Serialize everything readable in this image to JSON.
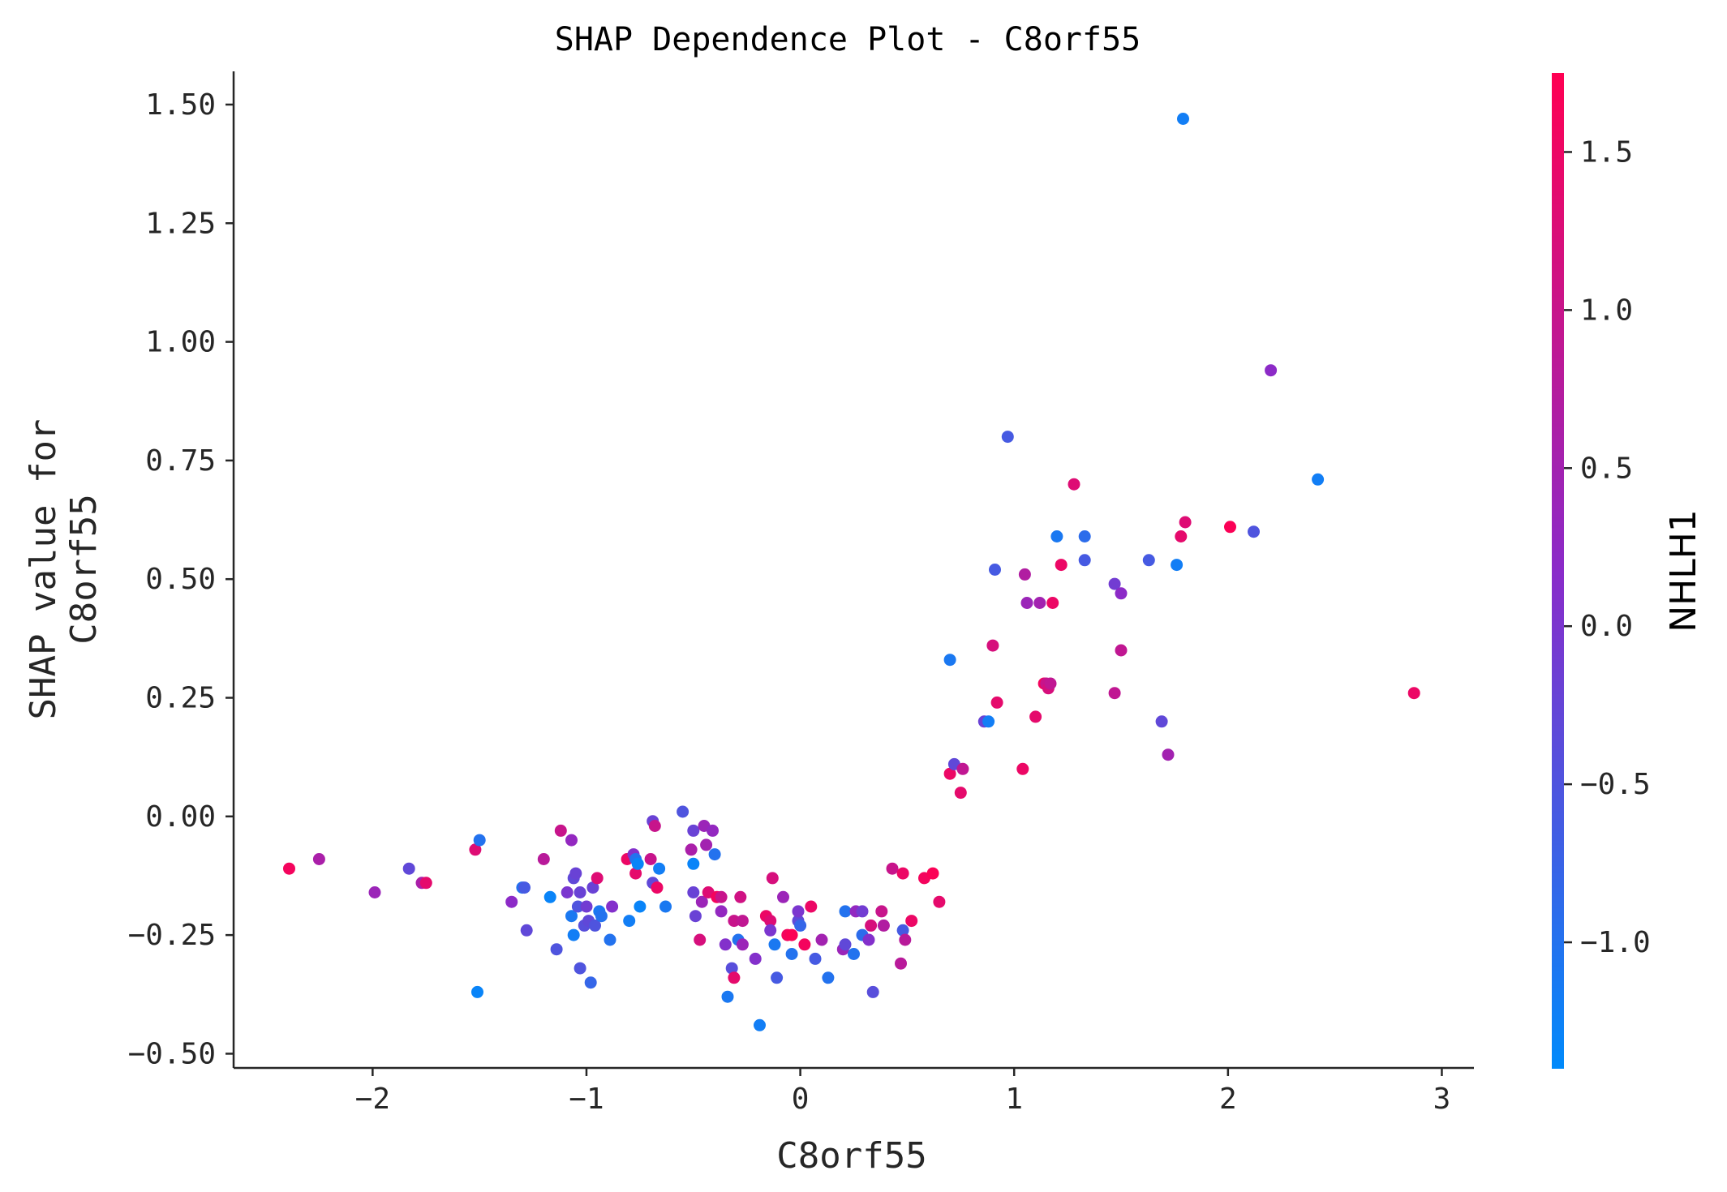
{
  "chart_data": {
    "type": "scatter",
    "title": "SHAP Dependence Plot - C8orf55",
    "xlabel": "C8orf55",
    "ylabel_lines": [
      "SHAP value for",
      "C8orf55"
    ],
    "xlim": [
      -2.65,
      3.15
    ],
    "ylim": [
      -0.53,
      1.57
    ],
    "x_ticks": [
      -2,
      -1,
      0,
      1,
      2,
      3
    ],
    "x_tick_labels": [
      "−2",
      "−1",
      "0",
      "1",
      "2",
      "3"
    ],
    "y_ticks": [
      -0.5,
      -0.25,
      0,
      0.25,
      0.5,
      0.75,
      1.0,
      1.25,
      1.5
    ],
    "y_tick_labels": [
      "−0.50",
      "−0.25",
      "0.00",
      "0.25",
      "0.50",
      "0.75",
      "1.00",
      "1.25",
      "1.50"
    ],
    "grid": false,
    "colorbar": {
      "label": "NHLH1",
      "range": [
        -1.4,
        1.75
      ],
      "ticks": [
        -1.0,
        -0.5,
        0.0,
        0.5,
        1.0,
        1.5
      ],
      "tick_labels": [
        "−1.0",
        "−0.5",
        "0.0",
        "0.5",
        "1.0",
        "1.5"
      ],
      "color_low": "#008afb",
      "color_mid": "#8a2bc9",
      "color_high": "#ff0052"
    },
    "points": [
      [
        -2.39,
        -0.11,
        1.6
      ],
      [
        -2.25,
        -0.09,
        0.6
      ],
      [
        -1.99,
        -0.16,
        0.4
      ],
      [
        -1.83,
        -0.11,
        -0.3
      ],
      [
        -1.77,
        -0.14,
        0.6
      ],
      [
        -1.75,
        -0.14,
        1.4
      ],
      [
        -1.52,
        -0.07,
        1.3
      ],
      [
        -1.51,
        -0.37,
        -1.3
      ],
      [
        -1.5,
        -0.05,
        -1.0
      ],
      [
        -1.35,
        -0.18,
        0.2
      ],
      [
        -1.3,
        -0.15,
        -1.0
      ],
      [
        -1.29,
        -0.15,
        -0.6
      ],
      [
        -1.28,
        -0.24,
        -0.3
      ],
      [
        -1.2,
        -0.09,
        0.8
      ],
      [
        -1.17,
        -0.17,
        -1.3
      ],
      [
        -1.14,
        -0.28,
        -0.5
      ],
      [
        -1.12,
        -0.03,
        1.0
      ],
      [
        -1.09,
        -0.16,
        0.0
      ],
      [
        -1.07,
        -0.21,
        -1.1
      ],
      [
        -1.07,
        -0.05,
        0.3
      ],
      [
        -1.06,
        -0.25,
        -1.2
      ],
      [
        -1.06,
        -0.13,
        -0.3
      ],
      [
        -1.05,
        -0.12,
        -0.2
      ],
      [
        -1.04,
        -0.19,
        -0.5
      ],
      [
        -1.03,
        -0.16,
        -0.2
      ],
      [
        -1.03,
        -0.32,
        -0.5
      ],
      [
        -1.01,
        -0.23,
        -0.4
      ],
      [
        -1.0,
        -0.19,
        -0.1
      ],
      [
        -0.99,
        -0.22,
        -0.3
      ],
      [
        -0.98,
        -0.35,
        -0.8
      ],
      [
        -0.97,
        -0.15,
        -0.2
      ],
      [
        -0.96,
        -0.23,
        -0.5
      ],
      [
        -0.95,
        -0.13,
        1.3
      ],
      [
        -0.94,
        -0.2,
        -1.1
      ],
      [
        -0.93,
        -0.21,
        -1.0
      ],
      [
        -0.89,
        -0.26,
        -1.0
      ],
      [
        -0.88,
        -0.19,
        0.1
      ],
      [
        -0.81,
        -0.09,
        1.5
      ],
      [
        -0.8,
        -0.22,
        -1.2
      ],
      [
        -0.78,
        -0.08,
        0.1
      ],
      [
        -0.77,
        -0.12,
        1.4
      ],
      [
        -0.77,
        -0.09,
        -1.0
      ],
      [
        -0.76,
        -0.1,
        -1.3
      ],
      [
        -0.75,
        -0.19,
        -1.3
      ],
      [
        -0.7,
        -0.09,
        1.0
      ],
      [
        -0.69,
        -0.14,
        -0.3
      ],
      [
        -0.69,
        -0.01,
        -0.2
      ],
      [
        -0.68,
        -0.02,
        1.0
      ],
      [
        -0.67,
        -0.15,
        1.5
      ],
      [
        -0.66,
        -0.11,
        -1.2
      ],
      [
        -0.63,
        -0.19,
        -1.1
      ],
      [
        -0.55,
        0.01,
        -0.5
      ],
      [
        -0.51,
        -0.07,
        0.6
      ],
      [
        -0.5,
        -0.16,
        -0.2
      ],
      [
        -0.5,
        -0.1,
        -1.3
      ],
      [
        -0.5,
        -0.03,
        -0.2
      ],
      [
        -0.49,
        -0.21,
        -0.2
      ],
      [
        -0.47,
        -0.26,
        1.2
      ],
      [
        -0.46,
        -0.18,
        0.4
      ],
      [
        -0.45,
        -0.02,
        0.4
      ],
      [
        -0.44,
        -0.06,
        0.5
      ],
      [
        -0.43,
        -0.16,
        1.3
      ],
      [
        -0.41,
        -0.03,
        0.3
      ],
      [
        -0.4,
        -0.08,
        -1.0
      ],
      [
        -0.39,
        -0.17,
        1.6
      ],
      [
        -0.37,
        -0.17,
        1.0
      ],
      [
        -0.37,
        -0.2,
        0.3
      ],
      [
        -0.35,
        -0.27,
        0.1
      ],
      [
        -0.34,
        -0.38,
        -1.1
      ],
      [
        -0.32,
        -0.32,
        -0.4
      ],
      [
        -0.31,
        -0.22,
        1.0
      ],
      [
        -0.31,
        -0.34,
        1.4
      ],
      [
        -0.29,
        -0.26,
        -1.0
      ],
      [
        -0.28,
        -0.17,
        1.1
      ],
      [
        -0.27,
        -0.27,
        0.4
      ],
      [
        -0.27,
        -0.22,
        0.9
      ],
      [
        -0.21,
        -0.3,
        0.1
      ],
      [
        -0.19,
        -0.44,
        -1.2
      ],
      [
        -0.16,
        -0.21,
        1.5
      ],
      [
        -0.14,
        -0.22,
        1.3
      ],
      [
        -0.14,
        -0.24,
        0.0
      ],
      [
        -0.13,
        -0.13,
        1.2
      ],
      [
        -0.12,
        -0.27,
        -1.1
      ],
      [
        -0.11,
        -0.34,
        -0.6
      ],
      [
        -0.08,
        -0.17,
        0.4
      ],
      [
        -0.06,
        -0.25,
        1.6
      ],
      [
        -0.04,
        -0.25,
        1.7
      ],
      [
        -0.04,
        -0.29,
        -1.0
      ],
      [
        -0.01,
        -0.22,
        -0.3
      ],
      [
        -0.01,
        -0.2,
        0.0
      ],
      [
        0.0,
        -0.23,
        -0.8
      ],
      [
        0.02,
        -0.27,
        1.6
      ],
      [
        0.05,
        -0.19,
        1.5
      ],
      [
        0.07,
        -0.3,
        -0.6
      ],
      [
        0.1,
        -0.26,
        0.5
      ],
      [
        0.13,
        -0.34,
        -1.0
      ],
      [
        0.2,
        -0.28,
        0.4
      ],
      [
        0.21,
        -0.2,
        -1.0
      ],
      [
        0.21,
        -0.27,
        -0.3
      ],
      [
        0.25,
        -0.29,
        -1.0
      ],
      [
        0.26,
        -0.2,
        0.3
      ],
      [
        0.29,
        -0.2,
        -0.1
      ],
      [
        0.29,
        -0.25,
        -0.9
      ],
      [
        0.32,
        -0.26,
        0.1
      ],
      [
        0.33,
        -0.23,
        1.2
      ],
      [
        0.34,
        -0.37,
        -0.4
      ],
      [
        0.38,
        -0.2,
        1.0
      ],
      [
        0.39,
        -0.23,
        0.7
      ],
      [
        0.43,
        -0.11,
        1.0
      ],
      [
        0.47,
        -0.31,
        0.8
      ],
      [
        0.48,
        -0.24,
        -0.6
      ],
      [
        0.48,
        -0.12,
        1.5
      ],
      [
        0.49,
        -0.26,
        0.8
      ],
      [
        0.52,
        -0.22,
        1.5
      ],
      [
        0.58,
        -0.13,
        1.6
      ],
      [
        0.62,
        -0.12,
        1.7
      ],
      [
        0.65,
        -0.18,
        1.4
      ],
      [
        0.7,
        0.33,
        -1.1
      ],
      [
        0.7,
        0.09,
        1.5
      ],
      [
        0.72,
        0.11,
        -0.3
      ],
      [
        0.75,
        0.05,
        1.4
      ],
      [
        0.76,
        0.1,
        0.9
      ],
      [
        0.86,
        0.2,
        -0.2
      ],
      [
        0.88,
        0.2,
        -1.2
      ],
      [
        0.9,
        0.36,
        1.2
      ],
      [
        0.91,
        0.52,
        -0.6
      ],
      [
        0.92,
        0.24,
        1.4
      ],
      [
        0.97,
        0.8,
        -0.6
      ],
      [
        1.04,
        0.1,
        1.5
      ],
      [
        1.05,
        0.51,
        0.7
      ],
      [
        1.06,
        0.45,
        0.4
      ],
      [
        1.1,
        0.21,
        1.4
      ],
      [
        1.12,
        0.45,
        0.5
      ],
      [
        1.14,
        0.28,
        1.6
      ],
      [
        1.15,
        0.28,
        1.0
      ],
      [
        1.16,
        0.27,
        1.2
      ],
      [
        1.17,
        0.28,
        0.9
      ],
      [
        1.18,
        0.45,
        1.5
      ],
      [
        1.2,
        0.59,
        -1.1
      ],
      [
        1.22,
        0.53,
        1.5
      ],
      [
        1.28,
        0.7,
        1.3
      ],
      [
        1.33,
        0.54,
        -0.6
      ],
      [
        1.33,
        0.59,
        -0.9
      ],
      [
        1.47,
        0.49,
        -0.1
      ],
      [
        1.47,
        0.26,
        0.9
      ],
      [
        1.5,
        0.35,
        0.9
      ],
      [
        1.5,
        0.47,
        0.2
      ],
      [
        1.63,
        0.54,
        -0.6
      ],
      [
        1.69,
        0.2,
        -0.3
      ],
      [
        1.72,
        0.13,
        0.5
      ],
      [
        1.76,
        0.53,
        -1.2
      ],
      [
        1.78,
        0.59,
        1.4
      ],
      [
        1.79,
        1.47,
        -1.2
      ],
      [
        1.8,
        0.62,
        1.3
      ],
      [
        2.01,
        0.61,
        1.7
      ],
      [
        2.12,
        0.6,
        -0.5
      ],
      [
        2.2,
        0.94,
        0.2
      ],
      [
        2.42,
        0.71,
        -1.2
      ],
      [
        2.87,
        0.26,
        1.5
      ]
    ]
  }
}
